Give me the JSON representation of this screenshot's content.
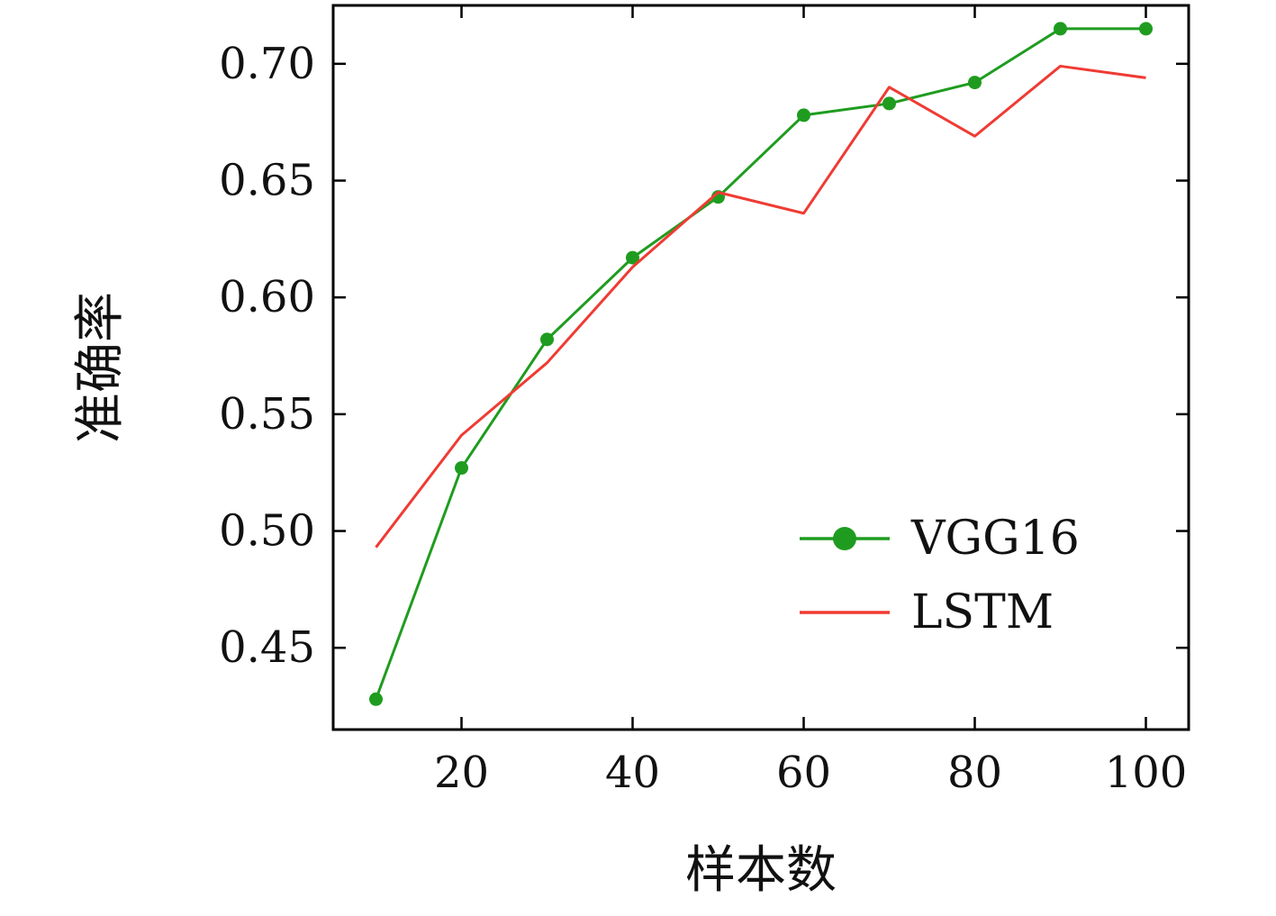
{
  "chart_data": {
    "type": "line",
    "title": "",
    "xlabel": "样本数",
    "ylabel": "准确率",
    "x": [
      10,
      20,
      30,
      40,
      50,
      60,
      70,
      80,
      90,
      100
    ],
    "series": [
      {
        "name": "VGG16",
        "color": "#1f9c1f",
        "marker": "circle",
        "values": [
          0.428,
          0.527,
          0.582,
          0.617,
          0.643,
          0.678,
          0.683,
          0.692,
          0.715,
          0.715
        ]
      },
      {
        "name": "LSTM",
        "color": "#ef3b33",
        "marker": "none",
        "values": [
          0.493,
          0.541,
          0.572,
          0.613,
          0.645,
          0.636,
          0.69,
          0.669,
          0.699,
          0.694
        ]
      }
    ],
    "xticks": [
      20,
      40,
      60,
      80,
      100
    ],
    "yticks": [
      0.45,
      0.5,
      0.55,
      0.6,
      0.65,
      0.7
    ],
    "xlim": [
      5,
      105
    ],
    "ylim": [
      0.415,
      0.725
    ],
    "grid": false,
    "legend_position": "inside-center-right",
    "frame_color": "#000000"
  }
}
